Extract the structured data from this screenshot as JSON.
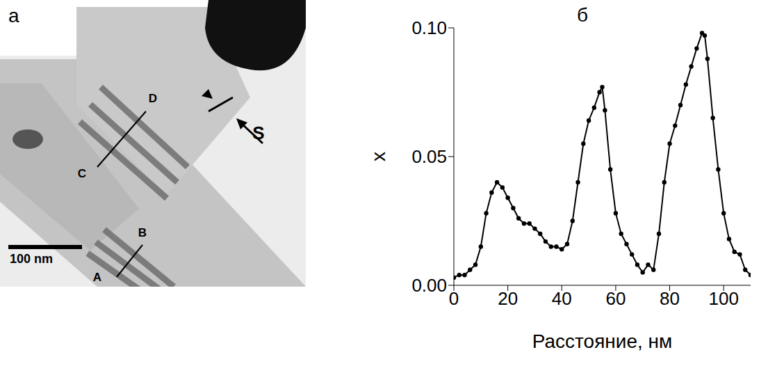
{
  "panel_a": {
    "letter": "а",
    "labels": [
      "A",
      "B",
      "C",
      "D",
      "S"
    ],
    "scale_bar": "100 nm"
  },
  "chart_data": {
    "type": "line",
    "title": "б",
    "x_label": "Расстояние, нм",
    "y_label": "x",
    "x": [
      0,
      2,
      4,
      6,
      8,
      10,
      12,
      14,
      16,
      18,
      20,
      22,
      24,
      26,
      28,
      30,
      32,
      34,
      36,
      38,
      40,
      42,
      44,
      46,
      48,
      50,
      52,
      54,
      55,
      56,
      58,
      60,
      62,
      64,
      66,
      68,
      70,
      72,
      74,
      76,
      78,
      80,
      82,
      84,
      86,
      88,
      90,
      92,
      93,
      94,
      96,
      98,
      100,
      102,
      104,
      106,
      108,
      110
    ],
    "values": [
      0.003,
      0.004,
      0.004,
      0.006,
      0.008,
      0.015,
      0.028,
      0.036,
      0.04,
      0.038,
      0.034,
      0.03,
      0.026,
      0.024,
      0.024,
      0.022,
      0.02,
      0.017,
      0.015,
      0.015,
      0.014,
      0.016,
      0.025,
      0.04,
      0.055,
      0.064,
      0.069,
      0.075,
      0.077,
      0.068,
      0.045,
      0.028,
      0.02,
      0.016,
      0.012,
      0.008,
      0.005,
      0.008,
      0.006,
      0.02,
      0.04,
      0.055,
      0.062,
      0.07,
      0.078,
      0.085,
      0.092,
      0.098,
      0.097,
      0.088,
      0.065,
      0.045,
      0.028,
      0.018,
      0.013,
      0.012,
      0.006,
      0.004
    ],
    "xlim": [
      0,
      110
    ],
    "ylim": [
      0,
      0.1
    ],
    "xticks": [
      0,
      20,
      40,
      60,
      80,
      100
    ],
    "yticks": [
      {
        "value": 0,
        "label": "0.00"
      },
      0.05,
      {
        "value": 0.1,
        "label": "0.10"
      }
    ],
    "color": "#000000",
    "marker": "circle",
    "line_style": "solid",
    "grid": false
  }
}
